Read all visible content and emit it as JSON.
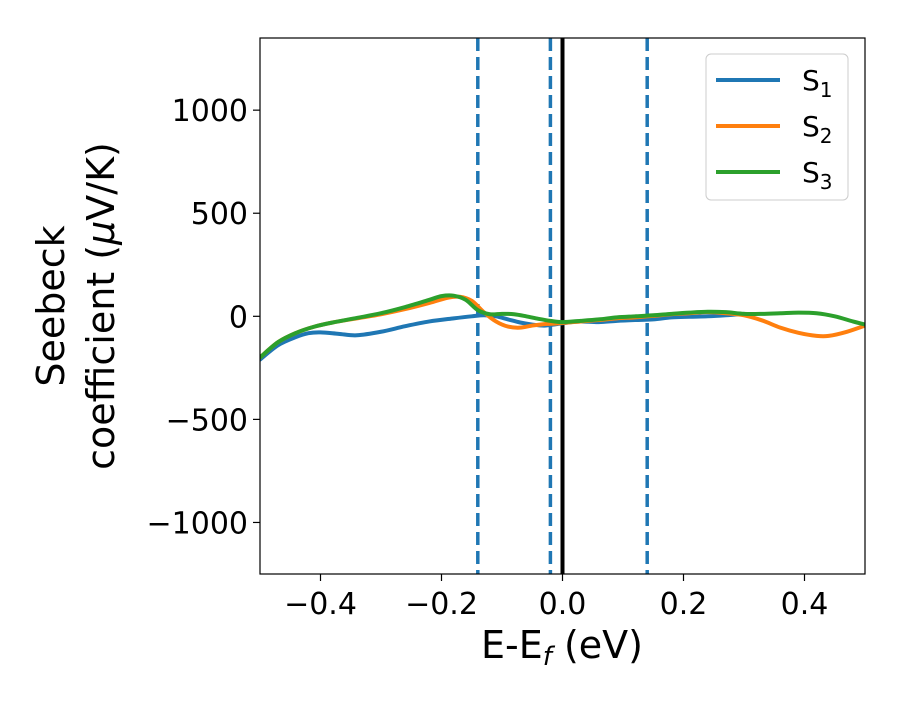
{
  "chart_data": {
    "type": "line",
    "title": "",
    "xlabel": {
      "base": "E-E",
      "sub": "f",
      "unit": " (eV)"
    },
    "ylabel": {
      "line1": "Seebeck",
      "line2": "coefficient  (",
      "mu": "μ",
      "line2_end": "V/K)"
    },
    "xlim": [
      -0.5,
      0.5
    ],
    "ylim": [
      -1250,
      1350
    ],
    "xticks": [
      -0.4,
      -0.2,
      0.0,
      0.2,
      0.4
    ],
    "xtick_labels": [
      "−0.4",
      "−0.2",
      "0.0",
      "0.2",
      "0.4"
    ],
    "yticks": [
      -1000,
      -500,
      0,
      500,
      1000
    ],
    "ytick_labels": [
      "−1000",
      "−500",
      "0",
      "500",
      "1000"
    ],
    "grid": false,
    "legend_position": "top-right",
    "vertical_lines": [
      {
        "x": -0.14,
        "color": "#1f77b4",
        "style": "dashed"
      },
      {
        "x": -0.02,
        "color": "#1f77b4",
        "style": "dashed"
      },
      {
        "x": 0.0,
        "color": "#000000",
        "style": "solid"
      },
      {
        "x": 0.14,
        "color": "#1f77b4",
        "style": "dashed"
      }
    ],
    "series": [
      {
        "name": "S",
        "sub": "1",
        "color": "#1f77b4",
        "x": [
          -0.5,
          -0.47,
          -0.44,
          -0.42,
          -0.4,
          -0.37,
          -0.34,
          -0.3,
          -0.26,
          -0.22,
          -0.18,
          -0.15,
          -0.13,
          -0.11,
          -0.09,
          -0.07,
          -0.05,
          -0.03,
          -0.01,
          0.01,
          0.03,
          0.06,
          0.09,
          0.12,
          0.15,
          0.18,
          0.21,
          0.24,
          0.27,
          0.3
        ],
        "y": [
          -210,
          -140,
          -100,
          -82,
          -78,
          -85,
          -92,
          -75,
          -48,
          -25,
          -10,
          0,
          5,
          0,
          -15,
          -30,
          -40,
          -45,
          -38,
          -30,
          -25,
          -28,
          -22,
          -18,
          -15,
          -5,
          -2,
          0,
          5,
          12
        ]
      },
      {
        "name": "S",
        "sub": "2",
        "color": "#ff7f0e",
        "x": [
          -0.5,
          -0.47,
          -0.44,
          -0.41,
          -0.38,
          -0.34,
          -0.3,
          -0.26,
          -0.22,
          -0.19,
          -0.17,
          -0.15,
          -0.13,
          -0.11,
          -0.09,
          -0.07,
          -0.05,
          -0.03,
          -0.01,
          0.01,
          0.03,
          0.06,
          0.09,
          0.12,
          0.15,
          0.18,
          0.21,
          0.24,
          0.27,
          0.3,
          0.33,
          0.36,
          0.39,
          0.42,
          0.44,
          0.47,
          0.5
        ],
        "y": [
          -200,
          -125,
          -80,
          -50,
          -30,
          -10,
          10,
          35,
          65,
          90,
          95,
          75,
          20,
          -25,
          -50,
          -55,
          -45,
          -38,
          -35,
          -30,
          -25,
          -18,
          -10,
          -5,
          2,
          10,
          15,
          20,
          15,
          5,
          -20,
          -55,
          -80,
          -95,
          -95,
          -75,
          -45
        ]
      },
      {
        "name": "S",
        "sub": "3",
        "color": "#2ca02c",
        "x": [
          -0.5,
          -0.47,
          -0.44,
          -0.41,
          -0.38,
          -0.34,
          -0.3,
          -0.26,
          -0.22,
          -0.2,
          -0.18,
          -0.16,
          -0.14,
          -0.12,
          -0.1,
          -0.08,
          -0.06,
          -0.04,
          -0.02,
          0.0,
          0.03,
          0.06,
          0.09,
          0.12,
          0.15,
          0.18,
          0.21,
          0.24,
          0.27,
          0.3,
          0.33,
          0.36,
          0.39,
          0.42,
          0.45,
          0.48,
          0.5
        ],
        "y": [
          -200,
          -125,
          -80,
          -50,
          -30,
          -8,
          15,
          45,
          80,
          98,
          100,
          80,
          30,
          10,
          12,
          10,
          0,
          -12,
          -22,
          -28,
          -22,
          -15,
          -5,
          0,
          5,
          12,
          18,
          22,
          20,
          12,
          12,
          15,
          18,
          15,
          0,
          -25,
          -40
        ]
      }
    ]
  }
}
